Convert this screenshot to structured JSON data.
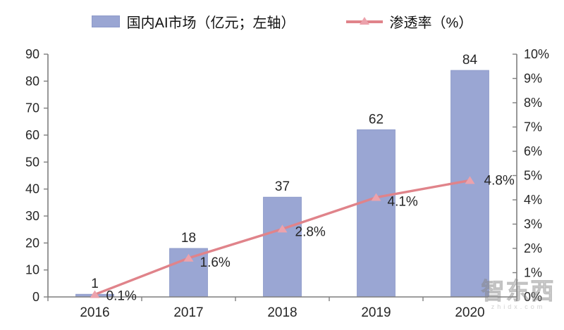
{
  "legend": {
    "bar_label": "国内AI市场（亿元；左轴）",
    "line_label": "渗透率（%）"
  },
  "watermark": {
    "text": "智东西",
    "subtext": "zhidx.com"
  },
  "colors": {
    "bar_fill": "#9AA6D3",
    "bar_edge": "#8C99C9",
    "line": "#E0838A",
    "marker": "#ECA2AC",
    "axis": "#7F7F7F",
    "text": "#262626"
  },
  "chart_data": {
    "type": "bar+line combo",
    "categories": [
      "2016",
      "2017",
      "2018",
      "2019",
      "2020"
    ],
    "series": [
      {
        "name": "国内AI市场（亿元；左轴）",
        "type": "bar",
        "axis": "left",
        "values": [
          1,
          18,
          37,
          62,
          84
        ],
        "data_labels": [
          "1",
          "18",
          "37",
          "62",
          "84"
        ]
      },
      {
        "name": "渗透率（%）",
        "type": "line",
        "axis": "right",
        "values": [
          0.1,
          1.6,
          2.8,
          4.1,
          4.8
        ],
        "data_labels": [
          "0.1%",
          "1.6%",
          "2.8%",
          "4.1%",
          "4.8%"
        ]
      }
    ],
    "left_axis": {
      "min": 0,
      "max": 90,
      "step": 10,
      "tick_labels": [
        "0",
        "10",
        "20",
        "30",
        "40",
        "50",
        "60",
        "70",
        "80",
        "90"
      ]
    },
    "right_axis": {
      "min": 0,
      "max": 10,
      "step": 1,
      "tick_labels": [
        "0%",
        "1%",
        "2%",
        "3%",
        "4%",
        "5%",
        "6%",
        "7%",
        "8%",
        "9%",
        "10%"
      ]
    },
    "legend_position": "top",
    "grid": false
  }
}
